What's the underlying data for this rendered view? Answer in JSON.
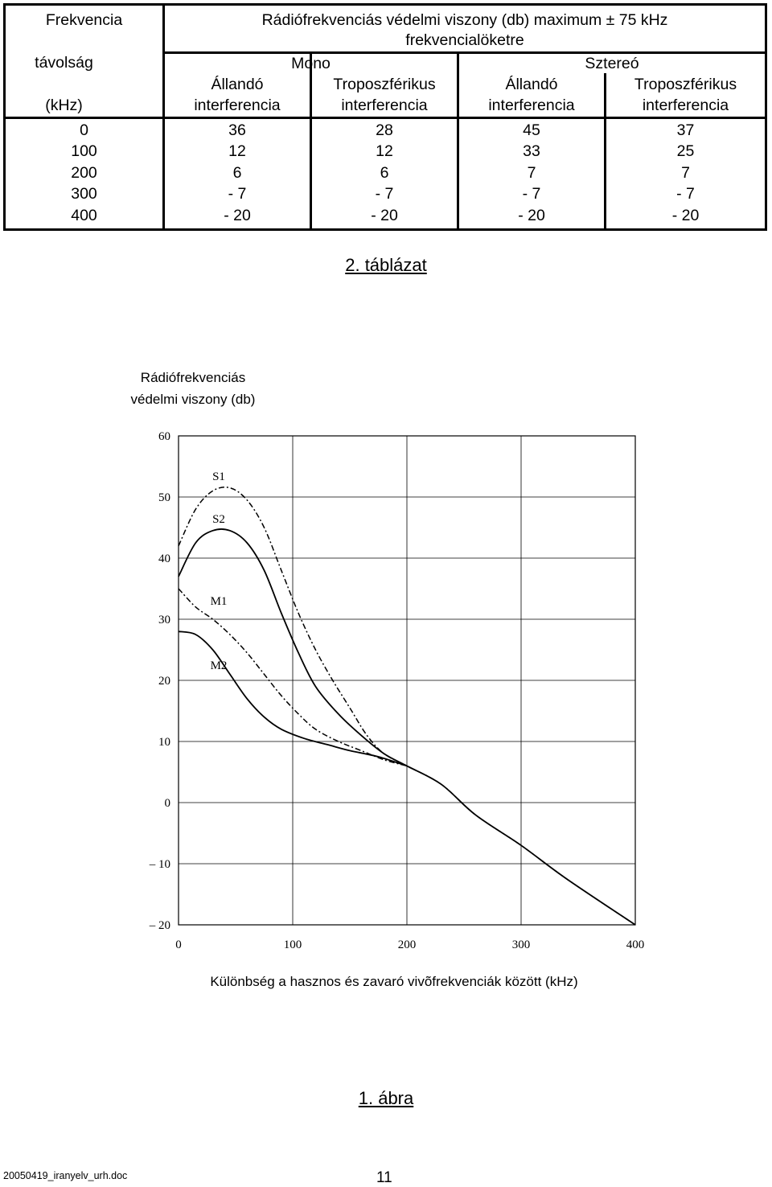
{
  "table": {
    "head_freq": [
      "Frekvencia",
      "távolság",
      "(kHz)"
    ],
    "head_title": [
      "Rádiófrekvenciás védelmi viszony (db) maximum ± 75 kHz",
      "frekvencialöketre"
    ],
    "mono": "Mono",
    "stereo": "Sztereó",
    "columns": [
      [
        "Állandó",
        "interferencia"
      ],
      [
        "Troposzférikus",
        "interferencia"
      ],
      [
        "Állandó",
        "interferencia"
      ],
      [
        "Troposzférikus",
        "interferencia"
      ]
    ],
    "rows": [
      [
        "0",
        "36",
        "28",
        "45",
        "37"
      ],
      [
        "100",
        "12",
        "12",
        "33",
        "25"
      ],
      [
        "200",
        "6",
        "6",
        "7",
        "7"
      ],
      [
        "300",
        "- 7",
        "- 7",
        "- 7",
        "- 7"
      ],
      [
        "400",
        "- 20",
        "- 20",
        "- 20",
        "- 20"
      ]
    ]
  },
  "table_caption": "2. táblázat",
  "chart_data": {
    "type": "line",
    "ylabel": [
      "Rádiófrekvenciás",
      "védelmi viszony (db)"
    ],
    "xlabel": "Különbség a hasznos és zavaró vivõfrekvenciák között (kHz)",
    "x_ticks": [
      "0",
      "100",
      "200",
      "300",
      "400"
    ],
    "y_ticks": [
      "60",
      "50",
      "40",
      "30",
      "20",
      "10",
      "0",
      "– 10",
      "– 20"
    ],
    "xlim": [
      0,
      400
    ],
    "ylim": [
      -20,
      60
    ],
    "grid": true,
    "series": [
      {
        "name": "S1",
        "style": "dash-dot",
        "x": [
          0,
          15,
          30,
          45,
          60,
          75,
          90,
          105,
          120,
          135,
          150,
          165,
          180,
          200,
          230,
          260,
          300,
          340,
          400
        ],
        "y": [
          42,
          48,
          51,
          51.5,
          49.5,
          45,
          38,
          31,
          25,
          20,
          15.5,
          11,
          8,
          6,
          3,
          -2,
          -7,
          -12.5,
          -20
        ]
      },
      {
        "name": "S2",
        "style": "solid",
        "x": [
          0,
          15,
          30,
          45,
          60,
          75,
          90,
          105,
          120,
          140,
          160,
          180,
          200,
          230,
          260,
          300,
          340,
          400
        ],
        "y": [
          37,
          42.5,
          44.5,
          44.5,
          42.5,
          38,
          31,
          24.5,
          19,
          14.5,
          11,
          8,
          6,
          3,
          -2,
          -7,
          -12.5,
          -20
        ]
      },
      {
        "name": "M1",
        "style": "dash-dot",
        "x": [
          0,
          15,
          30,
          45,
          60,
          75,
          90,
          105,
          120,
          140,
          160,
          180,
          200
        ],
        "y": [
          35,
          32,
          30,
          27.5,
          24.5,
          21,
          17.5,
          14.5,
          12,
          10,
          8.5,
          7,
          6
        ]
      },
      {
        "name": "M2",
        "style": "solid",
        "x": [
          0,
          15,
          30,
          45,
          60,
          75,
          90,
          110,
          130,
          150,
          175,
          200
        ],
        "y": [
          28,
          27.5,
          25,
          21,
          17,
          14,
          12,
          10.5,
          9.5,
          8.5,
          7.5,
          6
        ]
      }
    ]
  },
  "figure_caption": "1. ábra",
  "footer": {
    "filename": "20050419_iranyelv_urh.doc",
    "page": "11"
  }
}
